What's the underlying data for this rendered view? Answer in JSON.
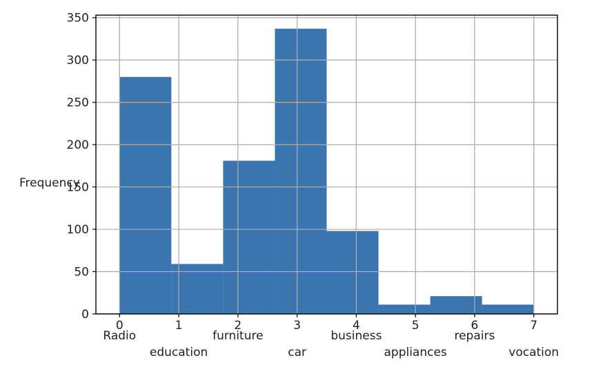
{
  "chart_data": {
    "type": "bar",
    "title": "",
    "xlabel": "",
    "ylabel": "Frequency",
    "xlim": [
      -0.4,
      7.4
    ],
    "ylim": [
      0,
      353
    ],
    "grid": true,
    "bar_color": "#3a75af",
    "x_ticks": [
      0,
      1,
      2,
      3,
      4,
      5,
      6,
      7
    ],
    "y_ticks": [
      0,
      50,
      100,
      150,
      200,
      250,
      300,
      350
    ],
    "bars": [
      {
        "x0": 0.0,
        "x1": 0.875,
        "value": 280
      },
      {
        "x0": 0.875,
        "x1": 1.75,
        "value": 59
      },
      {
        "x0": 1.75,
        "x1": 2.625,
        "value": 181
      },
      {
        "x0": 2.625,
        "x1": 3.5,
        "value": 337
      },
      {
        "x0": 3.5,
        "x1": 4.375,
        "value": 98
      },
      {
        "x0": 4.375,
        "x1": 5.25,
        "value": 11
      },
      {
        "x0": 5.25,
        "x1": 6.125,
        "value": 21
      },
      {
        "x0": 6.125,
        "x1": 7.0,
        "value": 11
      }
    ],
    "category_labels": [
      {
        "x": 0,
        "label": "Radio",
        "row": 0
      },
      {
        "x": 1,
        "label": "education",
        "row": 1
      },
      {
        "x": 2,
        "label": "furniture",
        "row": 0
      },
      {
        "x": 3,
        "label": "car",
        "row": 1
      },
      {
        "x": 4,
        "label": "business",
        "row": 0
      },
      {
        "x": 5,
        "label": "appliances",
        "row": 1
      },
      {
        "x": 6,
        "label": "repairs",
        "row": 0
      },
      {
        "x": 7,
        "label": "vocation",
        "row": 1
      }
    ]
  }
}
